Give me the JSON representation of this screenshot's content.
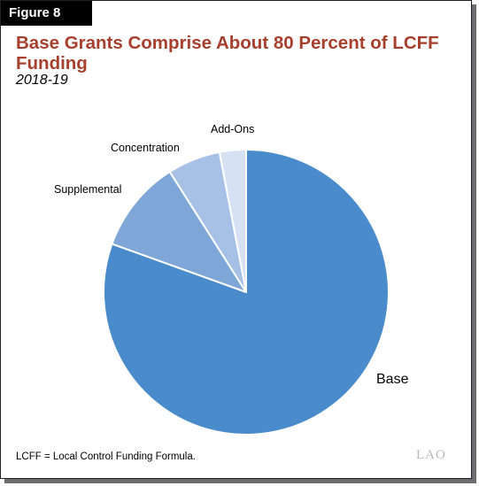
{
  "figure_label": "Figure 8",
  "title": "Base Grants Comprise About 80 Percent of LCFF Funding",
  "subtitle": "2018-19",
  "footnote": "LCFF = Local Control Funding Formula.",
  "logo_text": "LAO",
  "chart_data": {
    "type": "pie",
    "title": "Base Grants Comprise About 80 Percent of LCFF Funding",
    "start_angle_deg": 0,
    "direction": "clockwise",
    "slices": [
      {
        "label": "Base",
        "value": 80.5,
        "color": "#4a8ccb"
      },
      {
        "label": "Supplemental",
        "value": 10.5,
        "color": "#7ea7d8"
      },
      {
        "label": "Concentration",
        "value": 6.0,
        "color": "#a7c1e6"
      },
      {
        "label": "Add-Ons",
        "value": 3.0,
        "color": "#d6e1f3"
      }
    ]
  }
}
